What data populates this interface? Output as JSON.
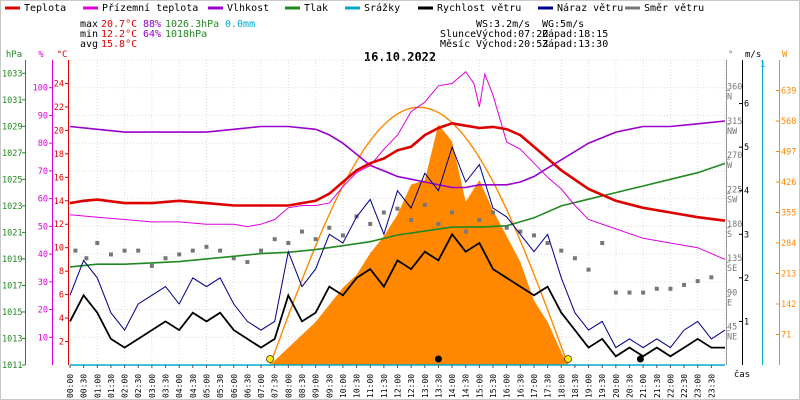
{
  "legend": [
    {
      "label": "Teplota",
      "color": "#dd0000"
    },
    {
      "label": "Přízemní teplota",
      "color": "#dd00dd"
    },
    {
      "label": "Vlhkost",
      "color": "#9900cc"
    },
    {
      "label": "Tlak",
      "color": "#228822"
    },
    {
      "label": "Srážky",
      "color": "#00aacc"
    },
    {
      "label": "Rychlost větru",
      "color": "#000000"
    },
    {
      "label": "Náraz větru",
      "color": "#000088"
    },
    {
      "label": "Směr větru",
      "color": "#777777"
    }
  ],
  "stats": {
    "max": {
      "label": "max",
      "temp": "20.7°C",
      "hum": "88%",
      "press": "1026.3hPa",
      "rain": "0.0mm"
    },
    "min": {
      "label": "min",
      "temp": "12.2°C",
      "hum": "64%",
      "press": "1018hPa"
    },
    "avg": {
      "label": "avg",
      "temp": "15.8°C"
    }
  },
  "wind_info": {
    "ws": "WS:3.2m/s",
    "wg": "WG:5m/s"
  },
  "sun_info": {
    "label": "Slunce",
    "rise": "Východ:07:20",
    "set": "Západ:18:15"
  },
  "moon_info": {
    "label": "Měsíc",
    "rise": "Východ:20:53",
    "set": "Západ:13:30"
  },
  "date": "16.10.2022",
  "axes": {
    "hpa": {
      "unit": "hPa",
      "ticks": [
        "1033",
        "1031",
        "1029",
        "1027",
        "1025",
        "1023",
        "1021",
        "1019",
        "1017",
        "1015",
        "1013",
        "1011"
      ]
    },
    "pct": {
      "unit": "%",
      "ticks": [
        "100",
        "90",
        "80",
        "70",
        "60",
        "50",
        "40",
        "30",
        "20",
        "10"
      ]
    },
    "degc": {
      "unit": "°C",
      "ticks": [
        "24",
        "22",
        "20",
        "18",
        "16",
        "14",
        "12",
        "10",
        "8",
        "6",
        "4",
        "2"
      ]
    },
    "dir": {
      "unit": "°",
      "ticks": [
        {
          "deg": "360",
          "card": "N"
        },
        {
          "deg": "315",
          "card": "NW"
        },
        {
          "deg": "270",
          "card": "W"
        },
        {
          "deg": "225",
          "card": "SW"
        },
        {
          "deg": "180",
          "card": "S"
        },
        {
          "deg": "135",
          "card": "SE"
        },
        {
          "deg": "90",
          "card": "E"
        },
        {
          "deg": "45",
          "card": "NE"
        }
      ]
    },
    "ms": {
      "unit": "m/s",
      "ticks": [
        "6",
        "5",
        "4",
        "3",
        "2",
        "1"
      ]
    },
    "mm": {
      "unit": "mm",
      "top": "1"
    },
    "wm2": {
      "unit": "W",
      "ticks": [
        "639",
        "568",
        "497",
        "426",
        "355",
        "284",
        "213",
        "142",
        "71"
      ]
    },
    "time_unit": "čas",
    "times": [
      "00:00",
      "00:30",
      "01:00",
      "01:30",
      "02:00",
      "02:30",
      "03:00",
      "03:30",
      "04:00",
      "04:30",
      "05:00",
      "05:30",
      "06:00",
      "06:30",
      "07:00",
      "07:30",
      "08:00",
      "08:30",
      "09:00",
      "09:30",
      "10:00",
      "10:30",
      "11:00",
      "11:30",
      "12:00",
      "12:30",
      "13:00",
      "13:30",
      "14:00",
      "14:30",
      "15:00",
      "15:30",
      "16:00",
      "16:30",
      "17:00",
      "17:30",
      "18:00",
      "18:30",
      "19:00",
      "19:30",
      "20:00",
      "20:30",
      "21:00",
      "21:30",
      "22:00",
      "22:30",
      "23:00",
      "23:30"
    ]
  },
  "chart_data": {
    "type": "line",
    "date": "16.10.2022",
    "x_unit": "hour",
    "x_range": [
      0,
      24
    ],
    "series": [
      {
        "name": "Teplota",
        "unit": "°C",
        "color": "#dd0000",
        "x": [
          0,
          0.5,
          1,
          2,
          3,
          4,
          5,
          6,
          7,
          8,
          9,
          9.5,
          10,
          10.5,
          11,
          11.5,
          12,
          12.5,
          13,
          13.5,
          14,
          14.5,
          15,
          15.5,
          16,
          16.5,
          17,
          17.5,
          18,
          18.5,
          19,
          20,
          21,
          22,
          23,
          24
        ],
        "y": [
          13.8,
          14.0,
          14.1,
          13.8,
          13.8,
          14.0,
          13.8,
          13.6,
          13.6,
          13.6,
          14.0,
          14.6,
          15.6,
          16.6,
          17.2,
          17.6,
          18.3,
          18.6,
          19.6,
          20.2,
          20.6,
          20.4,
          20.2,
          20.3,
          20.1,
          19.6,
          18.6,
          17.6,
          16.6,
          15.8,
          15.0,
          14.0,
          13.4,
          13.0,
          12.6,
          12.3
        ]
      },
      {
        "name": "Přízemní teplota",
        "unit": "°C",
        "color": "#dd00dd",
        "x": [
          0,
          1,
          2,
          3,
          4,
          5,
          6,
          6.5,
          7,
          7.5,
          8,
          8.5,
          9,
          9.5,
          10,
          10.5,
          11,
          11.5,
          12,
          12.5,
          13,
          13.5,
          14,
          14.5,
          14.8,
          15,
          15.2,
          15.5,
          15.8,
          16,
          16.5,
          17,
          17.5,
          18,
          18.5,
          19,
          20,
          21,
          22,
          23,
          24
        ],
        "y": [
          12.8,
          12.6,
          12.4,
          12.2,
          12.2,
          12.0,
          12.0,
          11.8,
          12.0,
          12.4,
          13.4,
          13.6,
          13.6,
          13.8,
          15.2,
          16.4,
          17.0,
          18.4,
          19.6,
          21.6,
          22.4,
          23.8,
          24.0,
          25.0,
          24.0,
          22.0,
          24.8,
          23.0,
          20.6,
          19.0,
          18.4,
          17.2,
          16.0,
          15.0,
          13.6,
          12.4,
          11.6,
          10.8,
          10.4,
          10.0,
          9.0
        ]
      },
      {
        "name": "Vlhkost",
        "unit": "%",
        "color": "#9900cc",
        "x": [
          0,
          1,
          2,
          3,
          4,
          5,
          6,
          7,
          8,
          9,
          9.5,
          10,
          10.5,
          11,
          11.5,
          12,
          12.5,
          13,
          13.5,
          14,
          14.5,
          15,
          15.5,
          16,
          16.5,
          17,
          17.5,
          18,
          18.5,
          19,
          20,
          21,
          22,
          23,
          24
        ],
        "y": [
          86,
          85,
          84,
          84,
          84,
          84,
          85,
          86,
          86,
          85,
          83,
          80,
          76,
          72,
          70,
          68,
          67,
          66,
          65,
          64,
          64,
          65,
          65,
          65,
          66,
          68,
          71,
          74,
          77,
          80,
          84,
          86,
          86,
          87,
          88
        ]
      },
      {
        "name": "Tlak",
        "unit": "hPa",
        "color": "#228822",
        "x": [
          0,
          1,
          2,
          3,
          4,
          5,
          6,
          7,
          8,
          9,
          10,
          11,
          12,
          13,
          14,
          15,
          16,
          17,
          18,
          19,
          20,
          21,
          22,
          23,
          24
        ],
        "y": [
          1018.4,
          1018.6,
          1018.6,
          1018.7,
          1018.8,
          1019.0,
          1019.2,
          1019.4,
          1019.5,
          1019.7,
          1020.0,
          1020.3,
          1020.8,
          1021.1,
          1021.4,
          1021.4,
          1021.5,
          1022.1,
          1023.0,
          1023.5,
          1024.0,
          1024.5,
          1025.0,
          1025.5,
          1026.2
        ]
      },
      {
        "name": "Rychlost větru",
        "unit": "m/s",
        "color": "#000000",
        "x": [
          0,
          0.5,
          1,
          1.5,
          2,
          2.5,
          3,
          3.5,
          4,
          4.5,
          5,
          5.5,
          6,
          6.5,
          7,
          7.5,
          8,
          8.5,
          9,
          9.5,
          10,
          10.5,
          11,
          11.5,
          12,
          12.5,
          13,
          13.5,
          14,
          14.5,
          15,
          15.5,
          16,
          16.5,
          17,
          17.5,
          18,
          18.5,
          19,
          19.5,
          20,
          20.5,
          21,
          21.5,
          22,
          22.5,
          23,
          23.5,
          24
        ],
        "y": [
          1.0,
          1.6,
          1.2,
          0.6,
          0.4,
          0.6,
          0.8,
          1.0,
          0.8,
          1.2,
          1.0,
          1.2,
          0.8,
          0.6,
          0.4,
          0.6,
          1.6,
          1.0,
          1.2,
          1.8,
          1.6,
          2.0,
          2.2,
          1.8,
          2.4,
          2.2,
          2.6,
          2.4,
          3.0,
          2.6,
          2.8,
          2.2,
          2.0,
          1.8,
          1.6,
          1.8,
          1.2,
          0.8,
          0.4,
          0.6,
          0.2,
          0.4,
          0.2,
          0.4,
          0.2,
          0.4,
          0.6,
          0.4,
          0.4
        ]
      },
      {
        "name": "Náraz větru",
        "unit": "m/s",
        "color": "#000088",
        "x": [
          0,
          0.5,
          1,
          1.5,
          2,
          2.5,
          3,
          3.5,
          4,
          4.5,
          5,
          5.5,
          6,
          6.5,
          7,
          7.5,
          8,
          8.5,
          9,
          9.5,
          10,
          10.5,
          11,
          11.5,
          12,
          12.5,
          13,
          13.5,
          14,
          14.5,
          15,
          15.5,
          16,
          16.5,
          17,
          17.5,
          18,
          18.5,
          19,
          19.5,
          20,
          20.5,
          21,
          21.5,
          22,
          22.5,
          23,
          23.5,
          24
        ],
        "y": [
          1.6,
          2.4,
          2.0,
          1.2,
          0.8,
          1.4,
          1.6,
          1.8,
          1.4,
          2.0,
          1.8,
          2.0,
          1.4,
          1.0,
          0.8,
          1.0,
          2.6,
          1.8,
          2.2,
          3.0,
          2.8,
          3.4,
          3.8,
          3.0,
          4.0,
          3.6,
          4.4,
          4.0,
          5.0,
          4.2,
          4.6,
          3.6,
          3.4,
          3.0,
          2.6,
          3.0,
          2.0,
          1.2,
          0.8,
          1.0,
          0.4,
          0.6,
          0.4,
          0.6,
          0.4,
          0.8,
          1.0,
          0.6,
          0.8
        ]
      },
      {
        "name": "Směr větru",
        "unit": "°",
        "color": "#777777",
        "x": [
          0.2,
          0.6,
          1.0,
          1.5,
          2.0,
          2.5,
          3.0,
          3.5,
          4.0,
          4.5,
          5.0,
          5.5,
          6.0,
          6.5,
          7.0,
          7.5,
          8.0,
          8.5,
          9.0,
          9.5,
          10.0,
          10.5,
          11.0,
          11.5,
          12.0,
          12.5,
          13.0,
          13.5,
          14.0,
          14.5,
          15.0,
          15.5,
          16.0,
          16.5,
          17.0,
          17.5,
          18.0,
          18.5,
          19.0,
          19.5,
          20.0,
          20.5,
          21.0,
          21.5,
          22.0,
          22.5,
          23.0,
          23.5
        ],
        "y": [
          150,
          140,
          160,
          145,
          150,
          150,
          130,
          140,
          145,
          150,
          155,
          150,
          140,
          135,
          150,
          165,
          160,
          175,
          165,
          180,
          170,
          195,
          185,
          200,
          205,
          190,
          210,
          185,
          200,
          175,
          190,
          200,
          180,
          175,
          170,
          160,
          150,
          140,
          125,
          160,
          95,
          95,
          95,
          100,
          100,
          105,
          110,
          115
        ]
      },
      {
        "name": "Srážky",
        "unit": "mm",
        "color": "#00aacc",
        "x": [
          0,
          24
        ],
        "y": [
          0,
          0
        ]
      },
      {
        "name": "Sluneční záření",
        "unit": "W/m²",
        "color": "#ff8800",
        "x": [
          7.33,
          8,
          9,
          10,
          10.5,
          11,
          11.5,
          12,
          12.5,
          13,
          13.5,
          14,
          14.5,
          15,
          15.5,
          16,
          16.5,
          17,
          17.5,
          18,
          18.25
        ],
        "y": [
          0,
          40,
          100,
          180,
          210,
          260,
          300,
          350,
          420,
          430,
          560,
          520,
          380,
          430,
          360,
          300,
          240,
          150,
          100,
          30,
          0
        ]
      }
    ],
    "sun_path": {
      "rise_hour": 7.33,
      "set_hour": 18.25,
      "peak_hour": 12.8
    },
    "moon_markers": [
      13.5,
      20.9
    ]
  }
}
